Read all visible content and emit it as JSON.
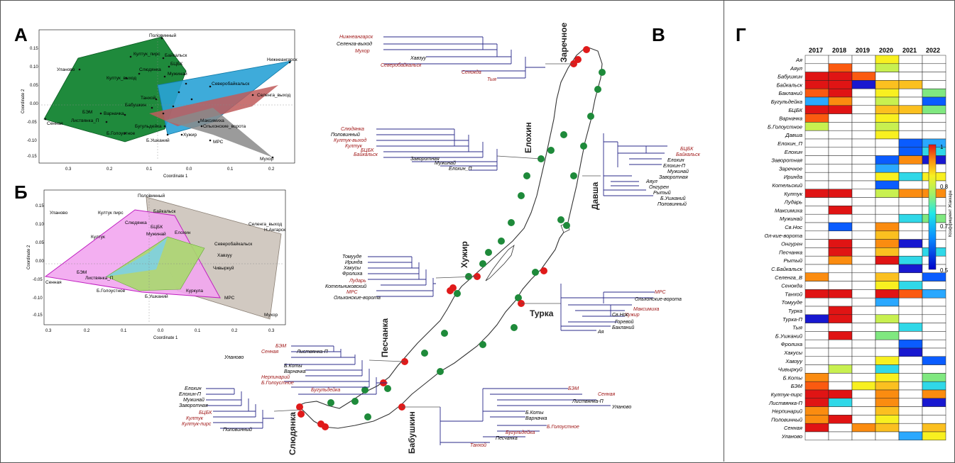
{
  "panels": {
    "a": "А",
    "b": "Б",
    "v": "В",
    "g": "Г"
  },
  "pcoa_a": {
    "xlabel": "Coordinate 1",
    "ylabel": "Coordinate 2",
    "yticks": [
      "0.15",
      "0.10",
      "0.05",
      "0.00",
      "-0.05",
      "-0.10",
      "-0.15"
    ],
    "xticks": [
      "0.3",
      "0.2",
      "0.1",
      "0.0",
      "0.1",
      "0.2"
    ],
    "points": [
      "Половинный",
      "Култук_пирс",
      "Байкальск",
      "БЦБК",
      "Култук_выход",
      "Слюдянка",
      "Мужинай",
      "Уланово",
      "Северобайкальск",
      "Нижнеангарск",
      "Танхой",
      "Бабушкин",
      "Селенга_выход",
      "БЭМ",
      "Варначка",
      "Листвянка_П",
      "Сенная",
      "Б.Голоустное",
      "Бугульдейка",
      "Максимиха",
      "Ольхонские_ворота",
      "Б.Ушканий",
      "Хужир",
      "МРС",
      "Мухор"
    ]
  },
  "pcoa_b": {
    "xlabel": "Coordinate 1",
    "ylabel": "Coordinate 2",
    "yticks": [
      "0.15",
      "0.10",
      "0.05",
      "0.00",
      "-0.05",
      "-0.10",
      "-0.15"
    ],
    "xticks": [
      "0.3",
      "0.2",
      "0.1",
      "0.0",
      "0.1",
      "0.2",
      "0.3"
    ],
    "points": [
      "Уланово",
      "Половинный",
      "Култук пирс",
      "Байкальск",
      "Слюдянка",
      "БЦБК",
      "Мужинай",
      "Елохин",
      "Култук",
      "Северобайкальск",
      "Селенга_выход",
      "Н.Ангарск",
      "Хавзуу",
      "БЭМ",
      "Сенная",
      "Листвянка_П",
      "Чивыркуй",
      "Б.Голоустное",
      "Б.Ушканий",
      "Куркула",
      "МРС",
      "Мухор"
    ]
  },
  "map": {
    "sites": [
      "Заречное",
      "Елохин",
      "Давша",
      "Хужир",
      "Турка",
      "Песчанка",
      "Слюдянка",
      "Бабушкин"
    ]
  },
  "trees": [
    {
      "labels": [
        {
          "t": "Нижнеангарск",
          "red": true
        },
        {
          "t": "Селенга-выход",
          "red": false
        },
        {
          "t": "Мухор",
          "red": true
        },
        {
          "t": "Хавзуу",
          "red": false
        },
        {
          "t": "Северобайкальск",
          "red": true
        },
        {
          "t": "Сенокда",
          "red": true
        },
        {
          "t": "Тыя",
          "red": true
        }
      ]
    },
    {
      "labels": [
        {
          "t": "Слюдянка",
          "red": true
        },
        {
          "t": "Половинный",
          "red": false
        },
        {
          "t": "Култук-выход",
          "red": true
        },
        {
          "t": "Култук",
          "red": true
        },
        {
          "t": "БЦБК",
          "red": true
        },
        {
          "t": "Байкальск",
          "red": true
        },
        {
          "t": "Заворотная",
          "red": false
        },
        {
          "t": "Мужинай",
          "red": false
        },
        {
          "t": "Елохин_П",
          "red": false
        }
      ]
    },
    {
      "labels": [
        {
          "t": "БЦБК",
          "red": true
        },
        {
          "t": "Байкальск",
          "red": true
        },
        {
          "t": "Елохин",
          "red": false
        },
        {
          "t": "Елохин-П",
          "red": false
        },
        {
          "t": "Мужинай",
          "red": false
        },
        {
          "t": "Заворотная",
          "red": false
        },
        {
          "t": "Аяул",
          "red": false
        },
        {
          "t": "Онгурен",
          "red": false
        },
        {
          "t": "Рытый",
          "red": false
        },
        {
          "t": "Б.Ушканий",
          "red": false
        },
        {
          "t": "Половинный",
          "red": false
        }
      ]
    },
    {
      "labels": [
        {
          "t": "Томууде",
          "red": false
        },
        {
          "t": "Иринда",
          "red": false
        },
        {
          "t": "Хакусы",
          "red": false
        },
        {
          "t": "Фролиха",
          "red": false
        },
        {
          "t": "Лударь",
          "red": true
        },
        {
          "t": "Котельниковский",
          "red": false
        },
        {
          "t": "МРС",
          "red": true
        },
        {
          "t": "Ольхонские-ворота",
          "red": false
        }
      ]
    },
    {
      "labels": [
        {
          "t": "МРС",
          "red": true
        },
        {
          "t": "Ольхонские-ворота",
          "red": false
        },
        {
          "t": "Максимиха",
          "red": true
        },
        {
          "t": "Хужир",
          "red": true
        },
        {
          "t": "Св.Нос",
          "red": false
        },
        {
          "t": "Горевой",
          "red": false
        },
        {
          "t": "Бакланий",
          "red": false
        },
        {
          "t": "Ая",
          "red": false
        }
      ]
    },
    {
      "labels": [
        {
          "t": "БЭМ",
          "red": true
        },
        {
          "t": "Сенная",
          "red": true
        },
        {
          "t": "Листвянка-П",
          "red": false
        },
        {
          "t": "Уланово",
          "red": false
        },
        {
          "t": "Б.Коты",
          "red": false
        },
        {
          "t": "Варначка",
          "red": false
        },
        {
          "t": "Нерпинарий",
          "red": true
        },
        {
          "t": "Б.Голоустное",
          "red": true
        },
        {
          "t": "Бугульдейка",
          "red": true
        }
      ]
    },
    {
      "labels": [
        {
          "t": "Елохин",
          "red": false
        },
        {
          "t": "Елохин-П",
          "red": false
        },
        {
          "t": "Мужинай",
          "red": false
        },
        {
          "t": "Заворотная",
          "red": false
        },
        {
          "t": "БЦБК",
          "red": true
        },
        {
          "t": "Култук",
          "red": true
        },
        {
          "t": "Култук-пирс",
          "red": true
        },
        {
          "t": "Половинный",
          "red": false
        }
      ]
    },
    {
      "labels": [
        {
          "t": "БЭМ",
          "red": true
        },
        {
          "t": "Сенная",
          "red": true
        },
        {
          "t": "Листвянка-П",
          "red": false
        },
        {
          "t": "Уланово",
          "red": false
        },
        {
          "t": "Б.Коты",
          "red": false
        },
        {
          "t": "Варначка",
          "red": false
        },
        {
          "t": "Б.Голоустное",
          "red": true
        },
        {
          "t": "Бугульдейка",
          "red": true
        },
        {
          "t": "Песчанка",
          "red": false
        },
        {
          "t": "Танхой",
          "red": true
        }
      ]
    }
  ],
  "heatmap": {
    "years": [
      "2017",
      "2018",
      "2019",
      "2020",
      "2021",
      "2022"
    ],
    "rows": [
      "Ая",
      "Аяул",
      "Бабушкин",
      "Байкальск",
      "Бакланий",
      "Бугульдейка",
      "БЦБК",
      "Варначка",
      "Б.Голоустное",
      "Давша",
      "Елохин_П",
      "Елохин",
      "Заворотная",
      "Заречное",
      "Иринда",
      "Котельский",
      "Култук",
      "Лударь",
      "Максимиха",
      "Мужинай",
      "Св.Нос",
      "Ол-кие-ворота",
      "Онгурен",
      "Песчанка",
      "Рытый",
      "С.Байкальск",
      "Селенга_В",
      "Сенокда",
      "Танхой",
      "Томууде",
      "Турка",
      "Турка-П",
      "Тыя",
      "Б.Ушканий",
      "Фролиха",
      "Хакусы",
      "Хавзуу",
      "Чивыркуй",
      "Б.Коты",
      "БЭМ",
      "Култук-пирс",
      "Листвянка-П",
      "Нерпинарий",
      "Половинный",
      "Сенная",
      "Уланово"
    ],
    "colorbar_ticks": [
      "1",
      "0.8",
      "0.7",
      "0.5"
    ],
    "colorbar_label": "Коэффициент Жаккара",
    "colors": {
      "hi": "#d42020",
      "low": "#1010d0"
    }
  }
}
